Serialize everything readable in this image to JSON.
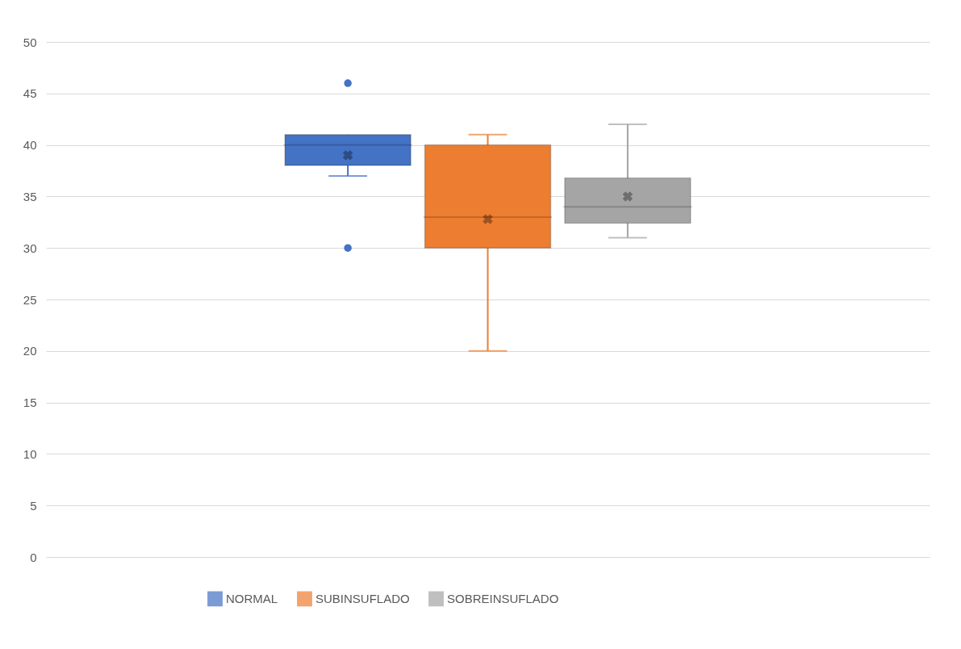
{
  "chart_data": {
    "type": "box",
    "categories": [
      null
    ],
    "series": [
      {
        "name": "NORMAL",
        "color": "#4472c4",
        "boxes": [
          {
            "low": 37,
            "q1": 38,
            "median": 40,
            "q3": 41,
            "high": 41,
            "mean": 39,
            "outliers": [
              46,
              30
            ]
          }
        ]
      },
      {
        "name": "SUBINSUFLADO",
        "color": "#ed7d31",
        "boxes": [
          {
            "low": 20,
            "q1": 30,
            "median": 33,
            "q3": 40,
            "high": 41,
            "mean": 32.8
          }
        ]
      },
      {
        "name": "SOBREINSUFLADO",
        "color": "#a5a5a5",
        "boxes": [
          {
            "low": 31,
            "q1": 32.4,
            "median": 34,
            "q3": 36.8,
            "high": 42,
            "mean": 35
          }
        ]
      }
    ],
    "ylim": [
      0,
      50
    ],
    "yticks": [
      0,
      5,
      10,
      15,
      20,
      25,
      30,
      35,
      40,
      45,
      50
    ],
    "grid": "y",
    "legend": "bottom",
    "tick_labels": "y",
    "marker": "circle"
  }
}
